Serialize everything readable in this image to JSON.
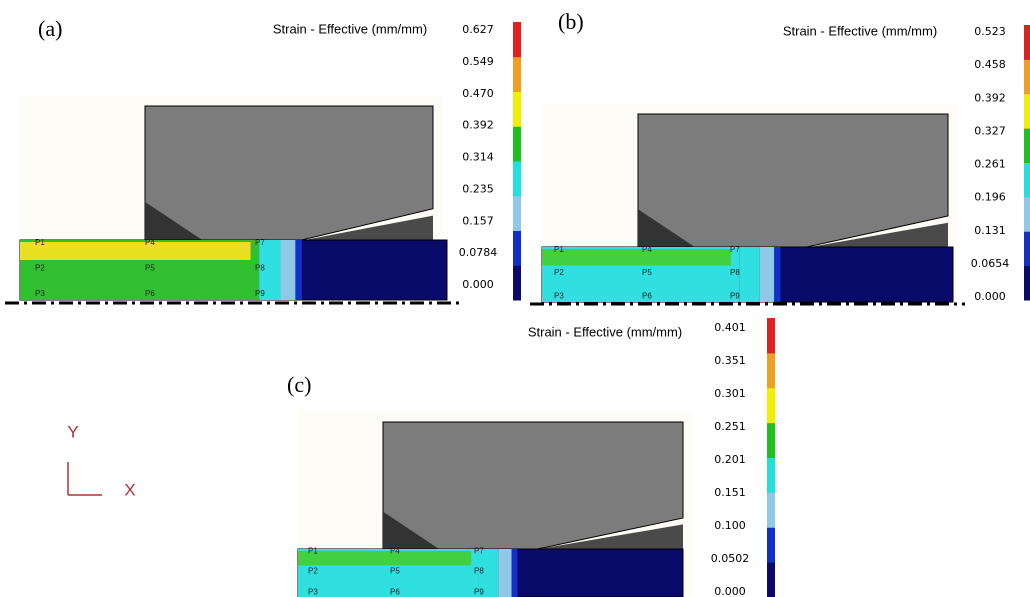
{
  "panels": [
    {
      "label": "(a)",
      "legend_title": "Strain - Effective (mm/mm)",
      "scale": [
        "0.627",
        "0.549",
        "0.470",
        "0.392",
        "0.314",
        "0.235",
        "0.157",
        "0.0784",
        "0.000"
      ],
      "points": [
        "P1",
        "P4",
        "P7",
        "P2",
        "P5",
        "P8",
        "P3",
        "P6",
        "P9"
      ]
    },
    {
      "label": "(b)",
      "legend_title": "Strain - Effective (mm/mm)",
      "scale": [
        "0.523",
        "0.458",
        "0.392",
        "0.327",
        "0.261",
        "0.196",
        "0.131",
        "0.0654",
        "0.000"
      ],
      "points": [
        "P1",
        "P4",
        "P7",
        "P2",
        "P5",
        "P8",
        "P3",
        "P6",
        "P9"
      ]
    },
    {
      "label": "(c)",
      "legend_title": "Strain - Effective (mm/mm)",
      "scale": [
        "0.401",
        "0.351",
        "0.301",
        "0.251",
        "0.201",
        "0.151",
        "0.100",
        "0.0502",
        "0.000"
      ],
      "points": [
        "P1",
        "P4",
        "P7",
        "P2",
        "P5",
        "P8",
        "P3",
        "P6",
        "P9"
      ]
    }
  ],
  "axes": {
    "y": "Y",
    "x": "X"
  }
}
